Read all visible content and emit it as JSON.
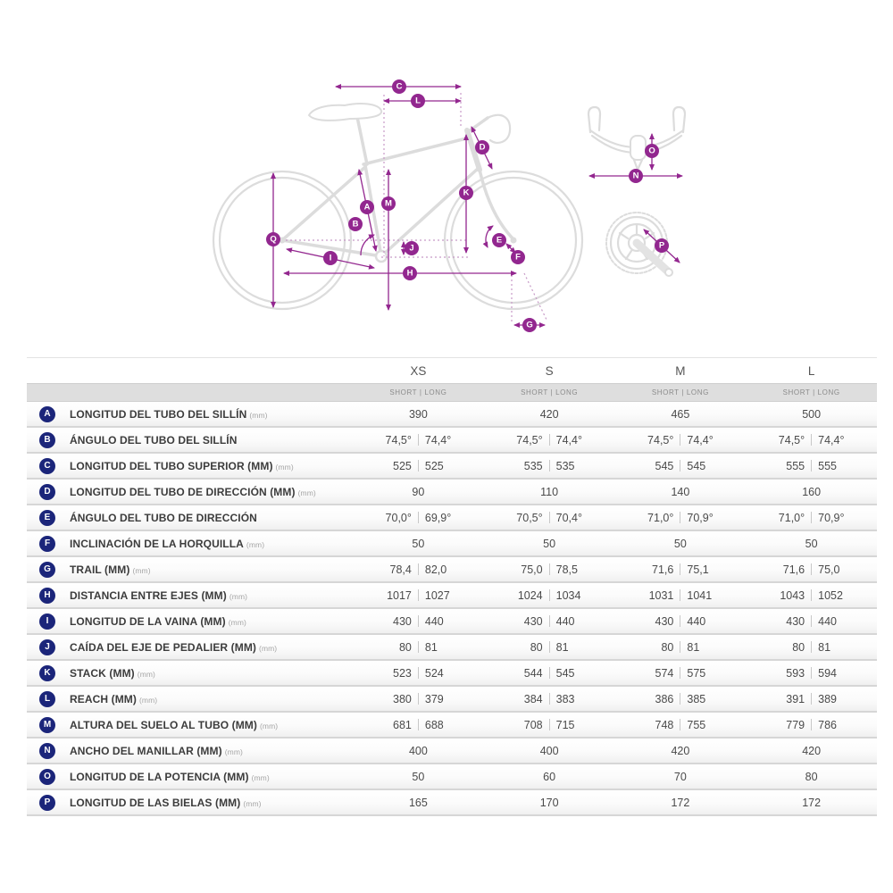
{
  "colors": {
    "accent_magenta": "#92278f",
    "badge_navy": "#1b257a",
    "bike_gray": "#dcdcdc"
  },
  "diagram": {
    "markers": {
      "A": "A",
      "B": "B",
      "C": "C",
      "D": "D",
      "E": "E",
      "F": "F",
      "G": "G",
      "H": "H",
      "I": "I",
      "J": "J",
      "K": "K",
      "L": "L",
      "M": "M",
      "N": "N",
      "O": "O",
      "P": "P",
      "Q": "Q"
    }
  },
  "table": {
    "sizes": [
      "XS",
      "S",
      "M",
      "L"
    ],
    "sub_header": "SHORT | LONG",
    "rows": [
      {
        "letter": "A",
        "label": "LONGITUD DEL TUBO DEL SILLÍN",
        "unit": "(mm)",
        "values": [
          [
            "390"
          ],
          [
            "420"
          ],
          [
            "465"
          ],
          [
            "500"
          ]
        ]
      },
      {
        "letter": "B",
        "label": "ÁNGULO DEL TUBO DEL SILLÍN",
        "unit": "",
        "values": [
          [
            "74,5°",
            "74,4°"
          ],
          [
            "74,5°",
            "74,4°"
          ],
          [
            "74,5°",
            "74,4°"
          ],
          [
            "74,5°",
            "74,4°"
          ]
        ]
      },
      {
        "letter": "C",
        "label": "LONGITUD DEL TUBO SUPERIOR (MM)",
        "unit": "(mm)",
        "values": [
          [
            "525",
            "525"
          ],
          [
            "535",
            "535"
          ],
          [
            "545",
            "545"
          ],
          [
            "555",
            "555"
          ]
        ]
      },
      {
        "letter": "D",
        "label": "LONGITUD DEL TUBO DE DIRECCIÓN (MM)",
        "unit": "(mm)",
        "values": [
          [
            "90"
          ],
          [
            "110"
          ],
          [
            "140"
          ],
          [
            "160"
          ]
        ]
      },
      {
        "letter": "E",
        "label": "ÁNGULO DEL TUBO DE DIRECCIÓN",
        "unit": "",
        "values": [
          [
            "70,0°",
            "69,9°"
          ],
          [
            "70,5°",
            "70,4°"
          ],
          [
            "71,0°",
            "70,9°"
          ],
          [
            "71,0°",
            "70,9°"
          ]
        ]
      },
      {
        "letter": "F",
        "label": "INCLINACIÓN DE LA HORQUILLA",
        "unit": "(mm)",
        "values": [
          [
            "50"
          ],
          [
            "50"
          ],
          [
            "50"
          ],
          [
            "50"
          ]
        ]
      },
      {
        "letter": "G",
        "label": "TRAIL (MM)",
        "unit": "(mm)",
        "values": [
          [
            "78,4",
            "82,0"
          ],
          [
            "75,0",
            "78,5"
          ],
          [
            "71,6",
            "75,1"
          ],
          [
            "71,6",
            "75,0"
          ]
        ]
      },
      {
        "letter": "H",
        "label": "DISTANCIA ENTRE EJES (MM)",
        "unit": "(mm)",
        "values": [
          [
            "1017",
            "1027"
          ],
          [
            "1024",
            "1034"
          ],
          [
            "1031",
            "1041"
          ],
          [
            "1043",
            "1052"
          ]
        ]
      },
      {
        "letter": "I",
        "label": "LONGITUD DE LA VAINA (MM)",
        "unit": "(mm)",
        "values": [
          [
            "430",
            "440"
          ],
          [
            "430",
            "440"
          ],
          [
            "430",
            "440"
          ],
          [
            "430",
            "440"
          ]
        ]
      },
      {
        "letter": "J",
        "label": "CAÍDA DEL EJE DE PEDALIER (MM)",
        "unit": "(mm)",
        "values": [
          [
            "80",
            "81"
          ],
          [
            "80",
            "81"
          ],
          [
            "80",
            "81"
          ],
          [
            "80",
            "81"
          ]
        ]
      },
      {
        "letter": "K",
        "label": "STACK (MM)",
        "unit": "(mm)",
        "values": [
          [
            "523",
            "524"
          ],
          [
            "544",
            "545"
          ],
          [
            "574",
            "575"
          ],
          [
            "593",
            "594"
          ]
        ]
      },
      {
        "letter": "L",
        "label": "REACH (MM)",
        "unit": "(mm)",
        "values": [
          [
            "380",
            "379"
          ],
          [
            "384",
            "383"
          ],
          [
            "386",
            "385"
          ],
          [
            "391",
            "389"
          ]
        ]
      },
      {
        "letter": "M",
        "label": "ALTURA DEL SUELO AL TUBO (MM)",
        "unit": "(mm)",
        "values": [
          [
            "681",
            "688"
          ],
          [
            "708",
            "715"
          ],
          [
            "748",
            "755"
          ],
          [
            "779",
            "786"
          ]
        ]
      },
      {
        "letter": "N",
        "label": "ANCHO DEL MANILLAR (MM)",
        "unit": "(mm)",
        "values": [
          [
            "400"
          ],
          [
            "400"
          ],
          [
            "420"
          ],
          [
            "420"
          ]
        ]
      },
      {
        "letter": "O",
        "label": "LONGITUD DE LA POTENCIA (MM)",
        "unit": "(mm)",
        "values": [
          [
            "50"
          ],
          [
            "60"
          ],
          [
            "70"
          ],
          [
            "80"
          ]
        ]
      },
      {
        "letter": "P",
        "label": "LONGITUD DE LAS BIELAS (MM)",
        "unit": "(mm)",
        "values": [
          [
            "165"
          ],
          [
            "170"
          ],
          [
            "172"
          ],
          [
            "172"
          ]
        ]
      }
    ]
  }
}
